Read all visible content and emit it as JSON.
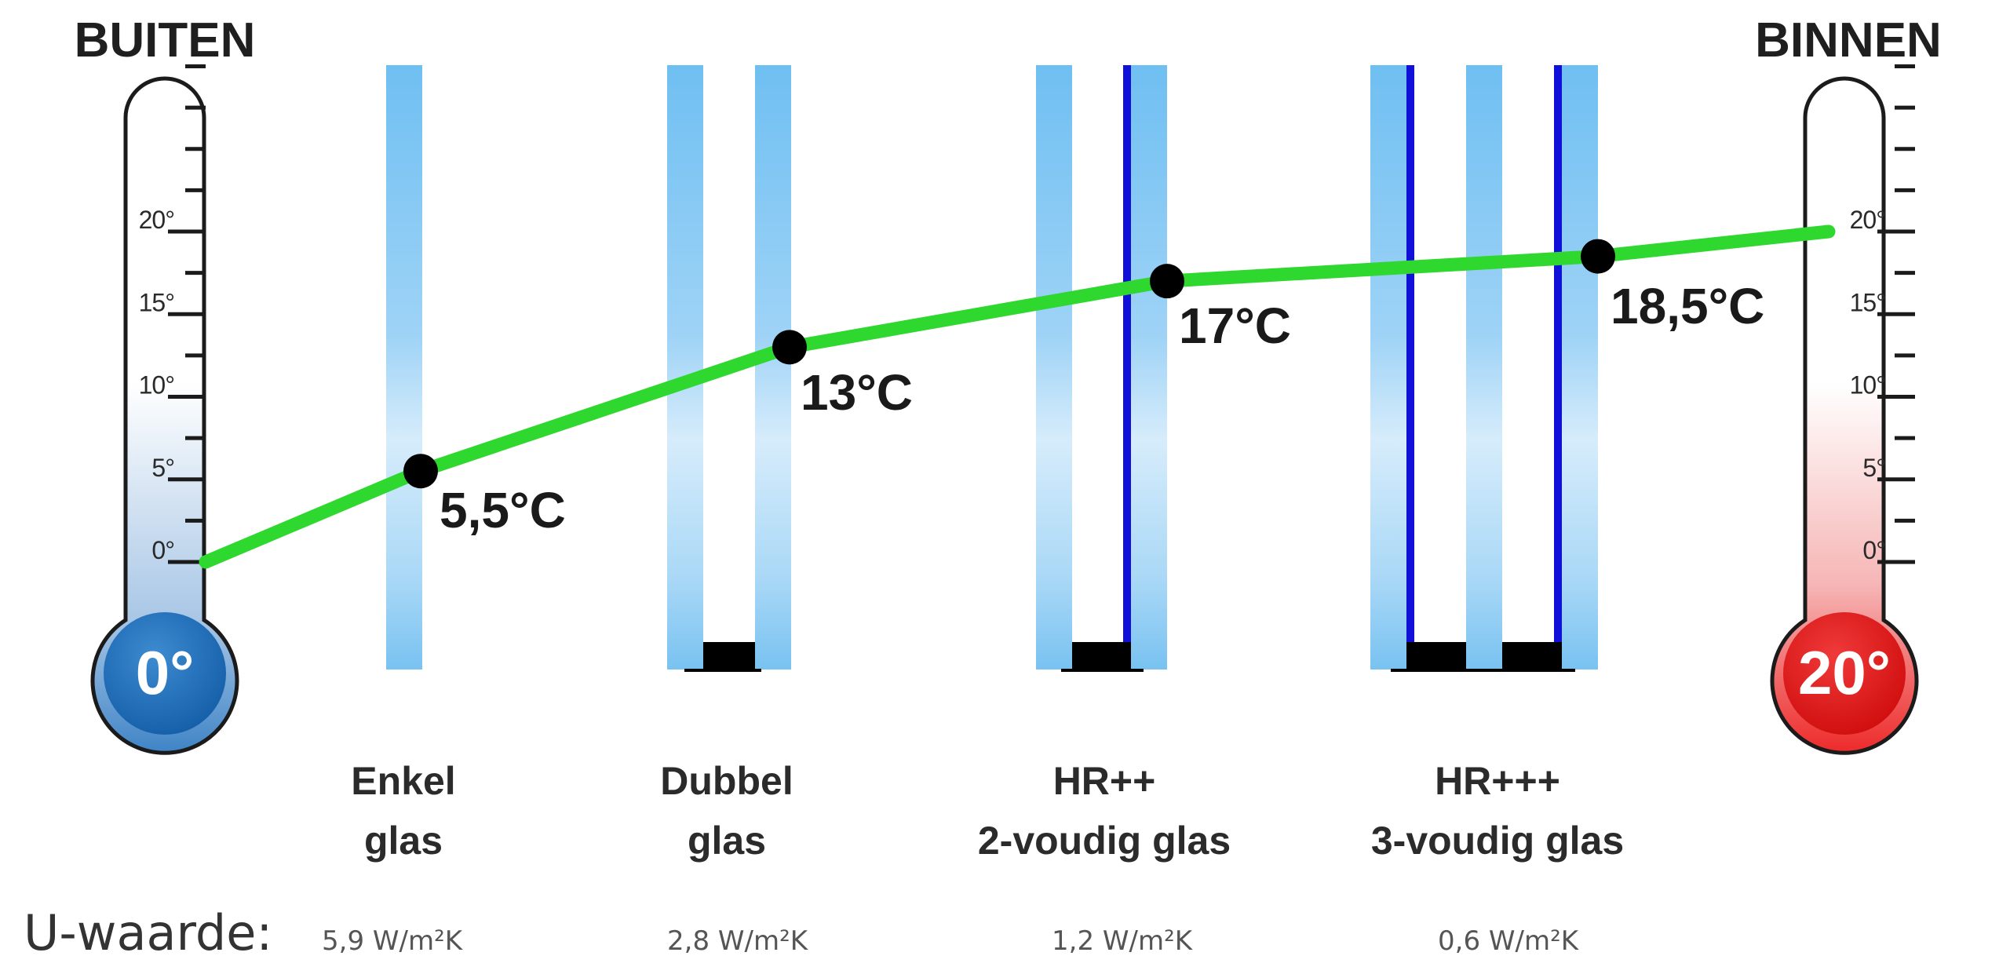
{
  "outside": {
    "title": "BUITEN",
    "temperature_label": "0°",
    "color": "#1f6fb8"
  },
  "inside": {
    "title": "BINNEN",
    "temperature_label": "20°",
    "color": "#e41d1d"
  },
  "scale_labels": [
    "0°",
    "5°",
    "10°",
    "15°",
    "20°"
  ],
  "glazing": [
    {
      "id": "enkel",
      "line1": "Enkel",
      "line2": "glas",
      "u_value": "5,9 W/m²K",
      "surface_temp": 5.5,
      "temp_label": "5,5°C"
    },
    {
      "id": "dubbel",
      "line1": "Dubbel",
      "line2": "glas",
      "u_value": "2,8 W/m²K",
      "surface_temp": 13,
      "temp_label": "13°C"
    },
    {
      "id": "hr2",
      "line1": "HR++",
      "line2": "2-voudig glas",
      "u_value": "1,2 W/m²K",
      "surface_temp": 17,
      "temp_label": "17°C"
    },
    {
      "id": "hr3",
      "line1": "HR+++",
      "line2": "3-voudig glas",
      "u_value": "0,6 W/m²K",
      "surface_temp": 18.5,
      "temp_label": "18,5°C"
    }
  ],
  "u_value_title": "U-waarde:",
  "colors": {
    "curve": "#2fd82f",
    "glass": "#78c3f3",
    "coating": "#1010d8",
    "spacer": "#000000",
    "point": "#000000"
  }
}
